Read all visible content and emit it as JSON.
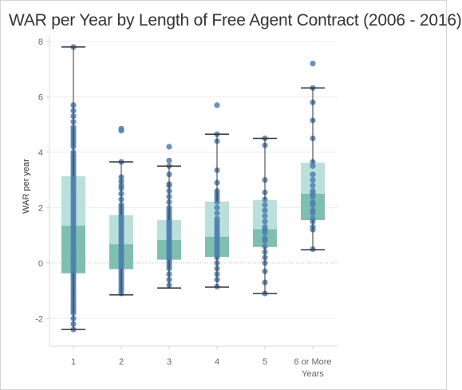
{
  "title": "WAR per Year by Length of Free Agent Contract (2006 - 2016)",
  "chart_data": {
    "type": "box",
    "ylabel": "WAR per year",
    "ylim": [
      -3,
      8.2
    ],
    "yticks": [
      -2,
      0,
      2,
      4,
      6,
      8
    ],
    "ytick_labels": [
      "-2",
      "0",
      "2",
      "4",
      "6",
      "8"
    ],
    "categories": [
      "1",
      "2",
      "3",
      "4",
      "5",
      "6 or More Years"
    ],
    "category_lines": [
      [
        "1"
      ],
      [
        "2"
      ],
      [
        "3"
      ],
      [
        "4"
      ],
      [
        "5"
      ],
      [
        "6 or More",
        "Years"
      ]
    ],
    "boxes": [
      {
        "category": "1",
        "whisker_low": -2.4,
        "q1": -0.37,
        "median": 1.35,
        "q3": 3.13,
        "whisker_high": 7.8
      },
      {
        "category": "2",
        "whisker_low": -1.15,
        "q1": -0.22,
        "median": 0.68,
        "q3": 1.73,
        "whisker_high": 3.65
      },
      {
        "category": "3",
        "whisker_low": -0.9,
        "q1": 0.12,
        "median": 0.83,
        "q3": 1.55,
        "whisker_high": 3.5
      },
      {
        "category": "4",
        "whisker_low": -0.87,
        "q1": 0.22,
        "median": 0.95,
        "q3": 2.22,
        "whisker_high": 4.65
      },
      {
        "category": "5",
        "whisker_low": -1.1,
        "q1": 0.58,
        "median": 1.22,
        "q3": 2.27,
        "whisker_high": 4.5
      },
      {
        "category": "6 or More Years",
        "whisker_low": 0.48,
        "q1": 1.55,
        "median": 2.5,
        "q3": 3.62,
        "whisker_high": 6.32
      }
    ],
    "points": [
      {
        "category": "1",
        "values": [
          7.8,
          5.7,
          5.5,
          5.3,
          5.1,
          4.9,
          4.8,
          4.7,
          4.6,
          4.5,
          4.4,
          4.3,
          4.2,
          4.0,
          3.9,
          3.8,
          3.7,
          3.6,
          3.5,
          3.4,
          3.3,
          3.2,
          3.1,
          3.0,
          2.9,
          2.8,
          2.7,
          2.6,
          2.5,
          2.4,
          2.3,
          2.2,
          2.1,
          2.0,
          1.9,
          1.8,
          1.7,
          1.6,
          1.5,
          1.4,
          1.3,
          1.2,
          1.1,
          1.0,
          0.9,
          0.8,
          0.7,
          0.6,
          0.5,
          0.4,
          0.3,
          0.2,
          0.1,
          0.0,
          -0.1,
          -0.2,
          -0.3,
          -0.4,
          -0.5,
          -0.6,
          -0.7,
          -0.8,
          -0.9,
          -1.0,
          -1.1,
          -1.2,
          -1.3,
          -1.4,
          -1.5,
          -1.6,
          -1.7,
          -1.8,
          -2.0,
          -2.2,
          -2.4
        ]
      },
      {
        "category": "2",
        "values": [
          4.85,
          4.78,
          3.65,
          3.1,
          2.95,
          2.8,
          2.7,
          2.5,
          2.3,
          2.1,
          2.0,
          1.9,
          1.8,
          1.7,
          1.6,
          1.5,
          1.4,
          1.3,
          1.2,
          1.1,
          1.0,
          0.9,
          0.8,
          0.7,
          0.6,
          0.5,
          0.4,
          0.3,
          0.2,
          0.1,
          0.0,
          -0.1,
          -0.2,
          -0.3,
          -0.4,
          -0.5,
          -0.6,
          -0.7,
          -0.8,
          -0.9,
          -1.0,
          -1.1
        ]
      },
      {
        "category": "3",
        "values": [
          4.2,
          3.7,
          3.5,
          3.2,
          2.85,
          2.8,
          2.6,
          2.4,
          2.2,
          2.0,
          1.9,
          1.8,
          1.7,
          1.6,
          1.5,
          1.4,
          1.3,
          1.2,
          1.1,
          1.0,
          0.9,
          0.8,
          0.7,
          0.6,
          0.5,
          0.4,
          0.3,
          0.2,
          0.1,
          0.0,
          -0.1,
          -0.2,
          -0.4,
          -0.6,
          -0.8
        ]
      },
      {
        "category": "4",
        "values": [
          5.7,
          4.65,
          4.4,
          3.35,
          2.9,
          2.6,
          2.5,
          2.4,
          2.3,
          2.2,
          2.0,
          1.8,
          1.6,
          1.5,
          1.4,
          1.3,
          1.2,
          1.1,
          1.0,
          0.9,
          0.8,
          0.7,
          0.6,
          0.5,
          0.4,
          0.3,
          0.2,
          0.0,
          -0.2,
          -0.4,
          -0.6,
          -0.85
        ]
      },
      {
        "category": "5",
        "values": [
          4.5,
          4.25,
          3.0,
          2.55,
          2.3,
          2.1,
          1.9,
          1.7,
          1.5,
          1.3,
          1.2,
          1.1,
          0.9,
          0.8,
          0.6,
          0.4,
          0.2,
          0.0,
          -0.3,
          -0.7,
          -1.1
        ]
      },
      {
        "category": "6 or More Years",
        "values": [
          7.2,
          6.32,
          5.8,
          5.15,
          4.5,
          3.65,
          3.5,
          3.2,
          3.0,
          2.8,
          2.6,
          2.5,
          2.4,
          2.2,
          2.1,
          1.9,
          1.8,
          1.6,
          1.5,
          1.3,
          1.2,
          0.5
        ]
      }
    ],
    "colors": {
      "upper_box": "#b9e0da",
      "lower_box": "#7fbfb0",
      "points": "#4e7fb0",
      "whisker": "#333333",
      "zero_line": "#bbbbbb",
      "grid": "#ececec"
    },
    "grid": true,
    "legend": "none"
  }
}
